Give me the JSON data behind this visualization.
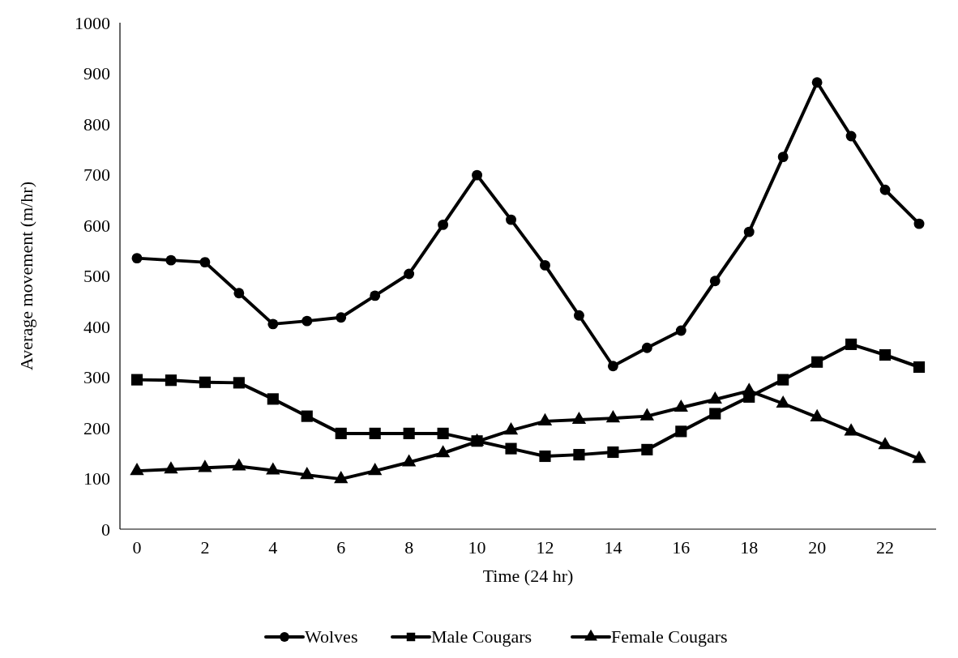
{
  "chart_data": {
    "type": "line",
    "xlabel": "Time (24 hr)",
    "ylabel": "Average movement (m/hr)",
    "x": [
      0,
      1,
      2,
      3,
      4,
      5,
      6,
      7,
      8,
      9,
      10,
      11,
      12,
      13,
      14,
      15,
      16,
      17,
      18,
      19,
      20,
      21,
      22,
      23
    ],
    "xlim": [
      -0.5,
      23.5
    ],
    "xticks": [
      0,
      2,
      4,
      6,
      8,
      10,
      12,
      14,
      16,
      18,
      20,
      22
    ],
    "ylim": [
      0,
      1000
    ],
    "yticks": [
      0,
      100,
      200,
      300,
      400,
      500,
      600,
      700,
      800,
      900,
      1000
    ],
    "grid": false,
    "legend": "bottom",
    "line_style": "solid",
    "series": [
      {
        "name": "Wolves",
        "color": "#000000",
        "marker": "circle",
        "values": [
          535,
          531,
          527,
          466,
          405,
          411,
          418,
          461,
          504,
          601,
          699,
          611,
          521,
          422,
          322,
          358,
          392,
          490,
          587,
          735,
          882,
          776,
          670,
          603
        ]
      },
      {
        "name": "Male Cougars",
        "color": "#000000",
        "marker": "square",
        "values": [
          295,
          294,
          290,
          289,
          257,
          223,
          189,
          189,
          189,
          189,
          174,
          159,
          144,
          147,
          152,
          157,
          193,
          228,
          261,
          295,
          330,
          365,
          344,
          320
        ]
      },
      {
        "name": "Female Cougars",
        "color": "#000000",
        "marker": "triangle",
        "values": [
          115,
          118,
          121,
          124,
          116,
          107,
          99,
          115,
          132,
          150,
          173,
          195,
          213,
          216,
          219,
          223,
          240,
          256,
          273,
          248,
          221,
          193,
          166,
          139
        ]
      }
    ]
  }
}
